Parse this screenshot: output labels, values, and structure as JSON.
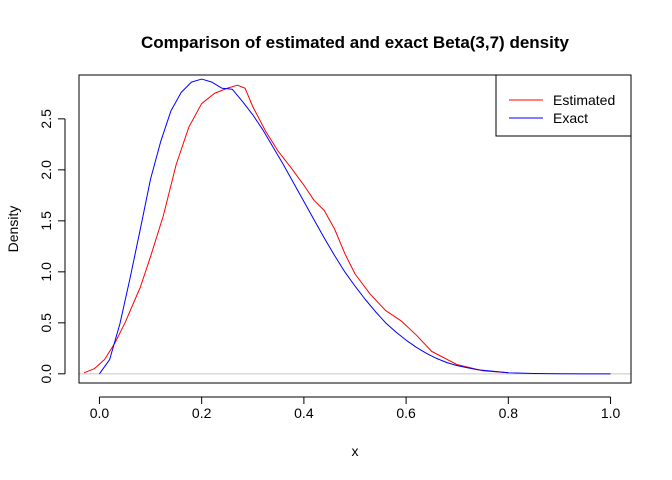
{
  "chart_data": {
    "type": "line",
    "title": "Comparison of estimated and exact Beta(3,7) density",
    "xlabel": "x",
    "ylabel": "Density",
    "xlim": [
      -0.04,
      1.04
    ],
    "ylim": [
      -0.09,
      2.93
    ],
    "xticks": [
      0.0,
      0.2,
      0.4,
      0.6,
      0.8,
      1.0
    ],
    "xtick_labels": [
      "0.0",
      "0.2",
      "0.4",
      "0.6",
      "0.8",
      "1.0"
    ],
    "yticks": [
      0.0,
      0.5,
      1.0,
      1.5,
      2.0,
      2.5
    ],
    "ytick_labels": [
      "0.0",
      "0.5",
      "1.0",
      "1.5",
      "2.0",
      "2.5"
    ],
    "baseline": {
      "y": 0,
      "color": "#c8c8c8"
    },
    "grid": false,
    "legend_position": "top-right",
    "series": [
      {
        "name": "Estimated",
        "color": "#ff0000",
        "x": [
          -0.03,
          -0.01,
          0.01,
          0.03,
          0.05,
          0.08,
          0.1,
          0.125,
          0.15,
          0.175,
          0.2,
          0.225,
          0.25,
          0.27,
          0.285,
          0.3,
          0.325,
          0.35,
          0.375,
          0.4,
          0.42,
          0.44,
          0.46,
          0.48,
          0.5,
          0.53,
          0.56,
          0.59,
          0.62,
          0.65,
          0.7,
          0.75,
          0.8
        ],
        "y": [
          0.01,
          0.05,
          0.14,
          0.3,
          0.5,
          0.85,
          1.15,
          1.55,
          2.05,
          2.42,
          2.65,
          2.75,
          2.8,
          2.83,
          2.8,
          2.62,
          2.38,
          2.18,
          2.02,
          1.85,
          1.7,
          1.6,
          1.42,
          1.18,
          0.98,
          0.78,
          0.62,
          0.52,
          0.38,
          0.22,
          0.09,
          0.03,
          0.01
        ]
      },
      {
        "name": "Exact",
        "color": "#0000ff",
        "x": [
          0.0,
          0.02,
          0.04,
          0.06,
          0.08,
          0.1,
          0.12,
          0.14,
          0.16,
          0.18,
          0.2,
          0.22,
          0.24,
          0.26,
          0.28,
          0.3,
          0.32,
          0.34,
          0.36,
          0.38,
          0.4,
          0.42,
          0.44,
          0.46,
          0.48,
          0.5,
          0.52,
          0.54,
          0.56,
          0.58,
          0.6,
          0.62,
          0.64,
          0.66,
          0.68,
          0.7,
          0.72,
          0.74,
          0.76,
          0.78,
          0.8,
          0.85,
          0.9,
          0.95,
          1.0
        ],
        "y": [
          0.0,
          0.14,
          0.49,
          0.94,
          1.42,
          1.91,
          2.28,
          2.58,
          2.76,
          2.86,
          2.89,
          2.86,
          2.8,
          2.79,
          2.67,
          2.54,
          2.39,
          2.22,
          2.05,
          1.87,
          1.69,
          1.51,
          1.33,
          1.16,
          1.0,
          0.86,
          0.73,
          0.61,
          0.5,
          0.41,
          0.33,
          0.26,
          0.2,
          0.15,
          0.11,
          0.08,
          0.06,
          0.04,
          0.03,
          0.02,
          0.01,
          0.003,
          0.0005,
          2e-05,
          0.0
        ]
      }
    ]
  }
}
